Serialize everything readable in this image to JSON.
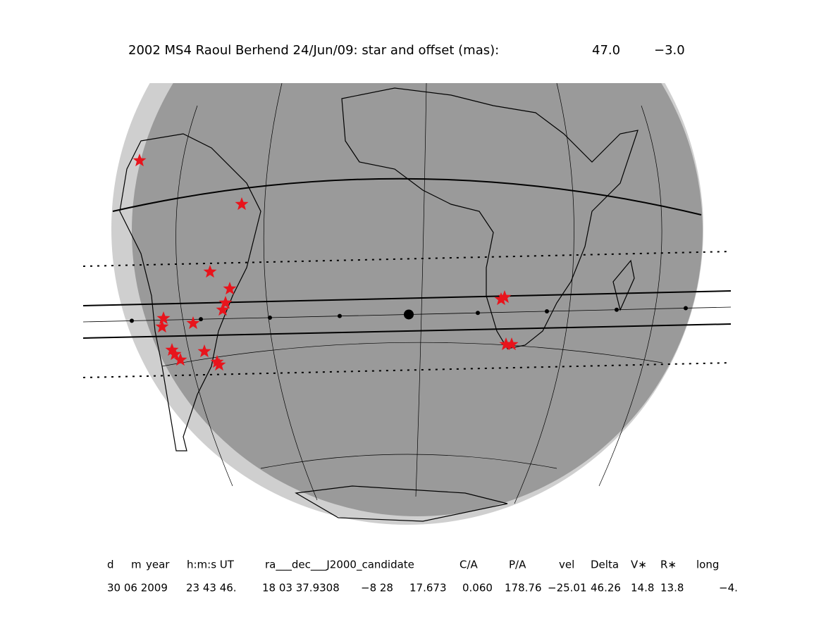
{
  "header": {
    "title": "2002 MS4 Raoul Berhend 24/Jun/09: star and offset (mas):",
    "offset_x": "47.0",
    "offset_y": "−3.0"
  },
  "table": {
    "headers": [
      "d",
      "m",
      "year",
      "h:m:s UT",
      "ra___dec___J2000_candidate",
      "C/A",
      "P/A",
      "vel",
      "Delta",
      "V∗",
      "R∗",
      "long"
    ],
    "values": [
      "30 06 2009",
      "23 43 46.",
      "18 03 37.9308",
      "−8 28",
      "17.673",
      "0.060",
      "178.76",
      "−25.01",
      "46.26",
      "14.8",
      "13.8",
      "−4."
    ]
  }
}
